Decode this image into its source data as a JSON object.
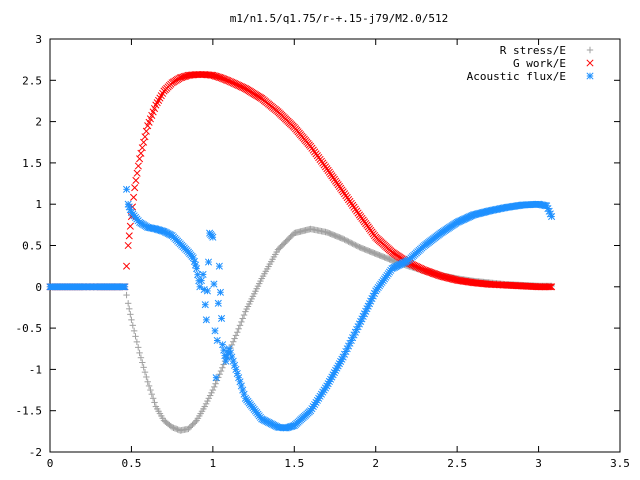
{
  "chart_data": {
    "type": "scatter",
    "title": "m1/n1.5/q1.75/r-+.15-j79/M2.0/512",
    "xlabel": "",
    "ylabel": "",
    "xlim": [
      0,
      3.5
    ],
    "ylim": [
      -2,
      3
    ],
    "x_ticks": [
      "0",
      "0.5",
      "1",
      "1.5",
      "2",
      "2.5",
      "3",
      "3.5"
    ],
    "y_ticks": [
      "-2",
      "-1.5",
      "-1",
      "-0.5",
      "0",
      "0.5",
      "1",
      "1.5",
      "2",
      "2.5",
      "3"
    ],
    "grid": false,
    "legend_position": "top-right",
    "series": [
      {
        "name": "R stress/E",
        "marker": "plus",
        "color": "#a0a0a0",
        "x": [
          0,
          0.1,
          0.2,
          0.3,
          0.4,
          0.46,
          0.48,
          0.5,
          0.55,
          0.6,
          0.65,
          0.7,
          0.75,
          0.8,
          0.85,
          0.9,
          0.95,
          1.0,
          1.05,
          1.1,
          1.15,
          1.2,
          1.3,
          1.4,
          1.5,
          1.6,
          1.7,
          1.8,
          1.9,
          2.0,
          2.1,
          2.2,
          2.3,
          2.4,
          2.5,
          2.6,
          2.7,
          2.8,
          2.9,
          3.0,
          3.08
        ],
        "y": [
          0,
          0,
          0,
          0,
          0,
          0,
          -0.2,
          -0.4,
          -0.8,
          -1.15,
          -1.45,
          -1.62,
          -1.7,
          -1.74,
          -1.72,
          -1.62,
          -1.45,
          -1.25,
          -1.02,
          -0.78,
          -0.55,
          -0.3,
          0.1,
          0.45,
          0.65,
          0.7,
          0.66,
          0.58,
          0.48,
          0.4,
          0.32,
          0.25,
          0.19,
          0.14,
          0.1,
          0.07,
          0.05,
          0.03,
          0.02,
          0.01,
          0.01
        ]
      },
      {
        "name": "G work/E",
        "marker": "cross",
        "color": "#ff0000",
        "x": [
          0,
          0.1,
          0.2,
          0.3,
          0.4,
          0.46,
          0.47,
          0.48,
          0.5,
          0.52,
          0.55,
          0.6,
          0.65,
          0.7,
          0.75,
          0.8,
          0.85,
          0.9,
          0.95,
          1.0,
          1.05,
          1.1,
          1.2,
          1.3,
          1.4,
          1.5,
          1.6,
          1.7,
          1.8,
          1.9,
          2.0,
          2.1,
          2.2,
          2.3,
          2.4,
          2.5,
          2.6,
          2.7,
          2.8,
          2.9,
          3.0,
          3.08
        ],
        "y": [
          0,
          0,
          0,
          0,
          0,
          0,
          0.25,
          0.5,
          0.85,
          1.2,
          1.55,
          1.95,
          2.2,
          2.37,
          2.47,
          2.53,
          2.56,
          2.57,
          2.57,
          2.56,
          2.53,
          2.49,
          2.4,
          2.28,
          2.12,
          1.93,
          1.7,
          1.43,
          1.15,
          0.87,
          0.6,
          0.42,
          0.29,
          0.2,
          0.13,
          0.08,
          0.05,
          0.03,
          0.02,
          0.01,
          0.0,
          0.0
        ]
      },
      {
        "name": "Acoustic flux/E",
        "marker": "star",
        "color": "#1e90ff",
        "x": [
          0,
          0.1,
          0.2,
          0.3,
          0.4,
          0.46,
          0.47,
          0.48,
          0.5,
          0.55,
          0.6,
          0.65,
          0.7,
          0.75,
          0.8,
          0.85,
          0.88,
          0.9,
          0.92,
          0.94,
          0.96,
          0.98,
          1.0,
          1.02,
          1.04,
          1.06,
          1.08,
          1.1,
          1.15,
          1.2,
          1.3,
          1.4,
          1.45,
          1.5,
          1.6,
          1.7,
          1.8,
          1.9,
          2.0,
          2.1,
          2.2,
          2.3,
          2.4,
          2.5,
          2.6,
          2.7,
          2.8,
          2.9,
          3.0,
          3.05,
          3.08
        ],
        "y": [
          0,
          0,
          0,
          0,
          0,
          0,
          1.18,
          1.0,
          0.9,
          0.78,
          0.72,
          0.7,
          0.67,
          0.62,
          0.52,
          0.42,
          0.35,
          0.22,
          0.0,
          0.15,
          -0.4,
          0.65,
          0.6,
          -1.1,
          0.25,
          -0.7,
          -0.9,
          -0.75,
          -1.05,
          -1.35,
          -1.6,
          -1.7,
          -1.71,
          -1.68,
          -1.5,
          -1.2,
          -0.85,
          -0.45,
          -0.05,
          0.22,
          0.32,
          0.5,
          0.65,
          0.78,
          0.87,
          0.92,
          0.96,
          0.99,
          1.0,
          0.98,
          0.85
        ]
      }
    ]
  }
}
